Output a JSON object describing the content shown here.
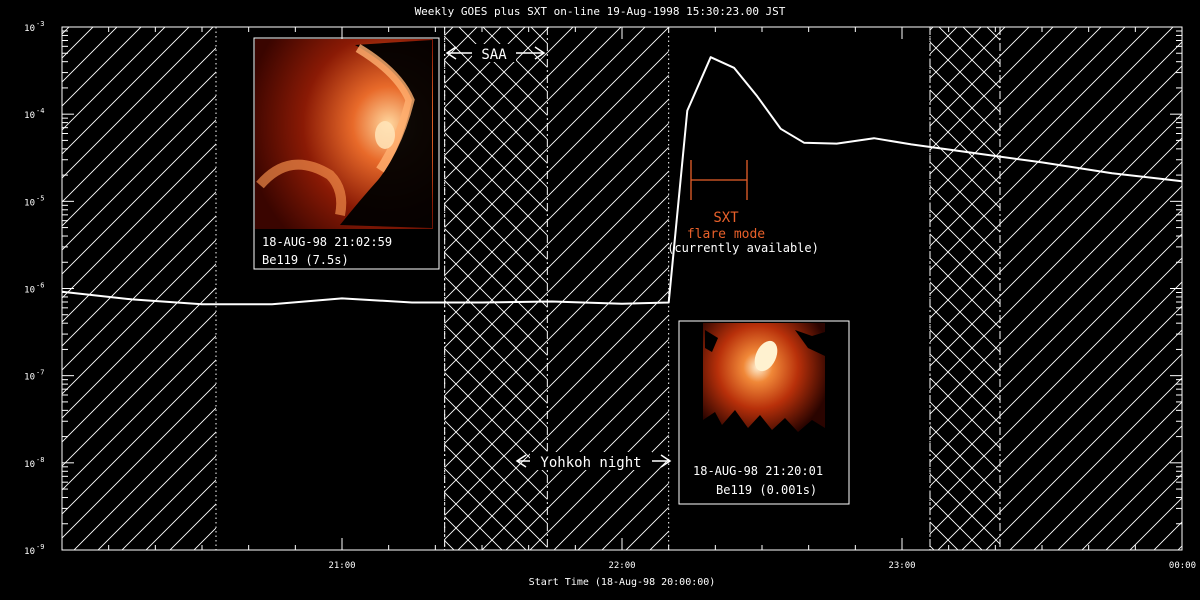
{
  "chart_data": {
    "type": "line",
    "title": "Weekly GOES plus SXT on-line 19-Aug-1998 15:30:23.00 JST",
    "xlabel": "Start Time (18-Aug-98 20:00:00)",
    "ylabel": "",
    "y_scale": "log",
    "ylim": [
      1e-09,
      0.001
    ],
    "xlim_minutes": [
      0,
      240
    ],
    "x_ticks": [
      {
        "minute": 60,
        "label": "21:00"
      },
      {
        "minute": 120,
        "label": "22:00"
      },
      {
        "minute": 180,
        "label": "23:00"
      },
      {
        "minute": 240,
        "label": "00:00"
      }
    ],
    "y_ticks": [
      {
        "value": 0.001,
        "base": "10",
        "exp": "-3"
      },
      {
        "value": 0.0001,
        "base": "10",
        "exp": "-4"
      },
      {
        "value": 1e-05,
        "base": "10",
        "exp": "-5"
      },
      {
        "value": 1e-06,
        "base": "10",
        "exp": "-6"
      },
      {
        "value": 1e-07,
        "base": "10",
        "exp": "-7"
      },
      {
        "value": 1e-08,
        "base": "10",
        "exp": "-8"
      },
      {
        "value": 1e-09,
        "base": "10",
        "exp": "-9"
      }
    ],
    "series": [
      {
        "name": "",
        "color": "#ffffff",
        "points": [
          [
            0,
            9.2e-07
          ],
          [
            15,
            7.5e-07
          ],
          [
            30,
            6.6e-07
          ],
          [
            45,
            6.6e-07
          ],
          [
            60,
            7.7e-07
          ],
          [
            75,
            6.9e-07
          ],
          [
            90,
            6.9e-07
          ],
          [
            105,
            7.1e-07
          ],
          [
            120,
            6.7e-07
          ],
          [
            130,
            6.9e-07
          ],
          [
            134,
            0.00011
          ],
          [
            139,
            0.00045
          ],
          [
            144,
            0.00034
          ],
          [
            149,
            0.00016
          ],
          [
            154,
            6.8e-05
          ],
          [
            159,
            4.7e-05
          ],
          [
            166,
            4.6e-05
          ],
          [
            174,
            5.3e-05
          ],
          [
            182,
            4.5e-05
          ],
          [
            195,
            3.6e-05
          ],
          [
            210,
            2.8e-05
          ],
          [
            225,
            2.1e-05
          ],
          [
            240,
            1.7e-05
          ]
        ]
      }
    ],
    "hatched_periods": [
      {
        "kind": "night",
        "start_min": 0,
        "end_min": 33
      },
      {
        "kind": "night",
        "start_min": 82,
        "end_min": 130
      },
      {
        "kind": "saa",
        "start_min": 82,
        "end_min": 104
      },
      {
        "kind": "night",
        "start_min": 186,
        "end_min": 240
      },
      {
        "kind": "saa",
        "start_min": 186,
        "end_min": 201
      }
    ],
    "annotations": {
      "saa_label": "SAA",
      "night_label": "Yohkoh night",
      "flare_label_1": "SXT",
      "flare_label_2": "flare mode",
      "flare_label_3": "(currently available)",
      "flare_color": "#e8602a",
      "flare_bar_minutes": [
        134,
        146
      ]
    },
    "insets": [
      {
        "caption_1": "18-AUG-98  21:02:59",
        "caption_2": "Be119 (7.5s)"
      },
      {
        "caption_1": "18-AUG-98  21:20:01",
        "caption_2": "Be119 (0.001s)"
      }
    ]
  }
}
